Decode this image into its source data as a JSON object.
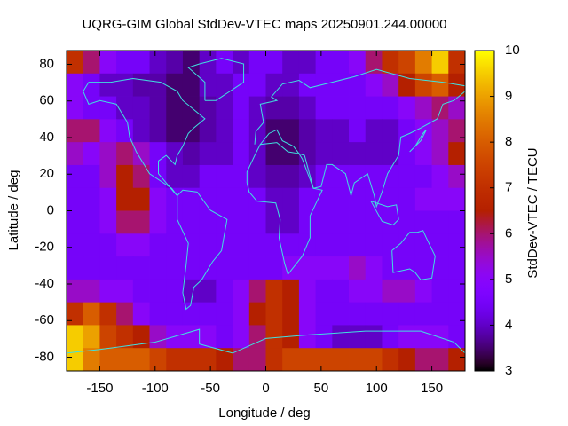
{
  "chart_data": {
    "type": "heatmap",
    "title": "UQRG-GIM Global StdDev-VTEC maps 20250901.244.00000",
    "x_label": "Longitude / deg",
    "y_label": "Latitude / deg",
    "colorbar_label": "StdDev-VTEC / TECU",
    "colormap": "gnuplot",
    "xlim": [
      -180,
      180
    ],
    "ylim": [
      -87.5,
      87.5
    ],
    "clim": [
      3,
      10
    ],
    "xticks": [
      -150,
      -100,
      -50,
      0,
      50,
      100,
      150
    ],
    "yticks": [
      -80,
      -60,
      -40,
      -20,
      0,
      20,
      40,
      60,
      80
    ],
    "cticks": [
      3,
      4,
      5,
      6,
      7,
      8,
      9,
      10
    ],
    "x": [
      -172.5,
      -157.5,
      -142.5,
      -127.5,
      -112.5,
      -97.5,
      -82.5,
      -67.5,
      -52.5,
      -37.5,
      -22.5,
      -7.5,
      7.5,
      22.5,
      37.5,
      52.5,
      67.5,
      82.5,
      97.5,
      112.5,
      127.5,
      142.5,
      157.5,
      172.5
    ],
    "y": [
      81.25,
      68.75,
      56.25,
      43.75,
      31.25,
      18.75,
      6.25,
      -6.25,
      -18.75,
      -31.25,
      -43.75,
      -56.25,
      -68.75,
      -81.25
    ],
    "z": [
      [
        7,
        6,
        5,
        4.5,
        4.5,
        4,
        3.8,
        3.5,
        4,
        4.5,
        4,
        4.5,
        4.5,
        4,
        4,
        4.5,
        4.5,
        5,
        6,
        7,
        7.5,
        8.5,
        9.5,
        7
      ],
      [
        5,
        4.5,
        4,
        4,
        3.8,
        3.8,
        3.5,
        3.5,
        4,
        4,
        4.5,
        4.5,
        4,
        4,
        4.5,
        4.5,
        4.5,
        4.5,
        5,
        5.5,
        6.5,
        7.5,
        8,
        6.5
      ],
      [
        5,
        4.5,
        4.5,
        4,
        4,
        3.8,
        3.5,
        3.5,
        3.8,
        4,
        4.5,
        4,
        3.8,
        3.8,
        4,
        4.5,
        4.5,
        4.5,
        4.5,
        4.5,
        5,
        5.5,
        6,
        5.5
      ],
      [
        6,
        6,
        5,
        4.5,
        4,
        3.8,
        3.5,
        3.5,
        3.8,
        4,
        4.5,
        4,
        3.5,
        3.5,
        3.8,
        4,
        4,
        4.5,
        4,
        4,
        4.5,
        5,
        5.5,
        6
      ],
      [
        5.5,
        5,
        5.5,
        6,
        5.5,
        4.5,
        4,
        3.8,
        4,
        4,
        4.5,
        4,
        3.5,
        3.5,
        3.8,
        4,
        4,
        4,
        4,
        4,
        4.5,
        5,
        5.5,
        6.5
      ],
      [
        4.5,
        4.5,
        5.5,
        6.5,
        6,
        4.5,
        4,
        4,
        4.5,
        4.5,
        4.5,
        4,
        3.8,
        3.8,
        4,
        4.5,
        4.5,
        4.5,
        4.5,
        4.5,
        4.5,
        4.5,
        5,
        5.5
      ],
      [
        4.5,
        4.5,
        5,
        6.5,
        6.5,
        5,
        4.5,
        4.5,
        4.5,
        4.5,
        4.5,
        4.5,
        4,
        4,
        4.5,
        4.5,
        4.5,
        4.5,
        4.5,
        4.5,
        4.5,
        5,
        5,
        5
      ],
      [
        4.5,
        4.5,
        5,
        6,
        6,
        5,
        4.5,
        4.5,
        4.5,
        4.5,
        4.5,
        4.5,
        4,
        4,
        4.5,
        4.5,
        4.5,
        4.5,
        4.5,
        4.5,
        4.5,
        4.5,
        4.5,
        4.5
      ],
      [
        4.5,
        4.5,
        4.5,
        5,
        5,
        4.5,
        4.5,
        4.5,
        4.5,
        4.5,
        4.5,
        4.5,
        4.5,
        4.5,
        4.5,
        4.5,
        4.5,
        4.5,
        4.5,
        4.5,
        4.5,
        4.5,
        4.5,
        4.5
      ],
      [
        4.5,
        4.5,
        4.5,
        4.5,
        4.5,
        4.5,
        4.5,
        4.5,
        4.5,
        4.5,
        4.5,
        4.5,
        4.5,
        5,
        5,
        5,
        5,
        5.5,
        5,
        4.5,
        4.5,
        4.5,
        4.5,
        4.5
      ],
      [
        5.5,
        5.5,
        5,
        5,
        4.5,
        4.5,
        4.5,
        4,
        4,
        4.5,
        5,
        6,
        7,
        6.5,
        5,
        4.5,
        4.5,
        5,
        5,
        5.5,
        5.5,
        5,
        4.5,
        4.5
      ],
      [
        7,
        8,
        7,
        6,
        5,
        4.5,
        4.5,
        4.5,
        4.5,
        4.5,
        5,
        6.5,
        7,
        6.5,
        5,
        4.5,
        4.5,
        4.5,
        4.5,
        4.5,
        4.5,
        4.5,
        4.5,
        4.5
      ],
      [
        9.5,
        9,
        7.5,
        7,
        6.5,
        5.5,
        5,
        5,
        5,
        4.5,
        5,
        6,
        7,
        6.5,
        5,
        4.5,
        4,
        4,
        4,
        4.5,
        5,
        5,
        5,
        4.5
      ],
      [
        9.5,
        8.5,
        8,
        8,
        8,
        7.5,
        7,
        7,
        7,
        6.5,
        6,
        6,
        7,
        7.5,
        7.5,
        7.5,
        7.5,
        7.5,
        7.5,
        7,
        6.5,
        6,
        6,
        6.5
      ]
    ]
  }
}
